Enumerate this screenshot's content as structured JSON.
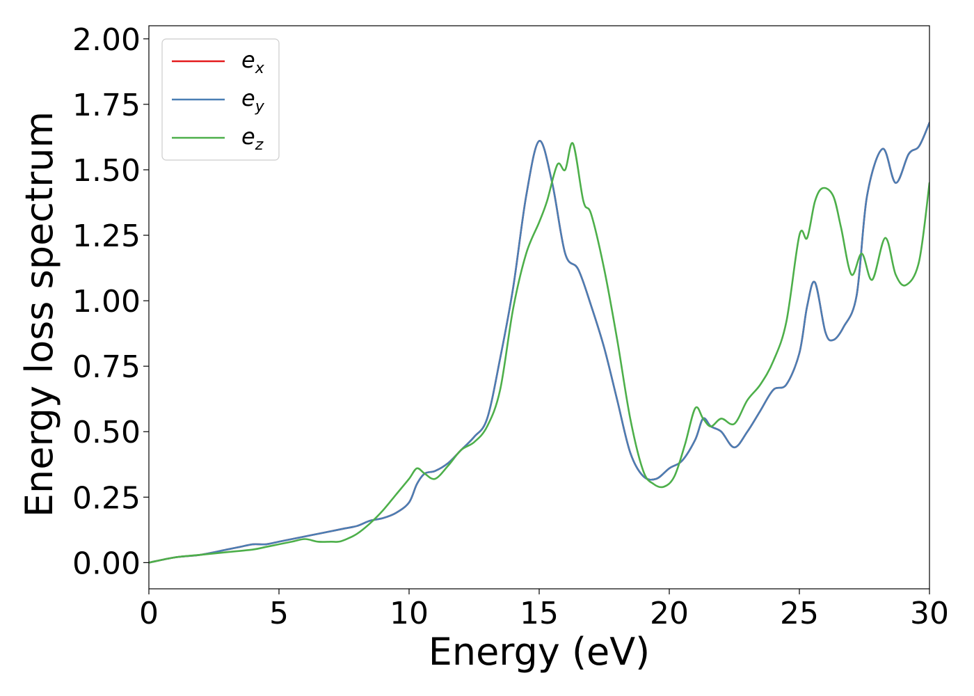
{
  "chart_data": {
    "type": "line",
    "xlabel": "Energy (eV)",
    "ylabel": "Energy loss spectrum",
    "xlim": [
      0,
      30
    ],
    "ylim": [
      -0.1,
      2.05
    ],
    "xticks": [
      0,
      5,
      10,
      15,
      20,
      25,
      30
    ],
    "xtick_labels": [
      "0",
      "5",
      "10",
      "15",
      "20",
      "25",
      "30"
    ],
    "yticks": [
      0.0,
      0.25,
      0.5,
      0.75,
      1.0,
      1.25,
      1.5,
      1.75,
      2.0
    ],
    "ytick_labels": [
      "0.00",
      "0.25",
      "0.50",
      "0.75",
      "1.00",
      "1.25",
      "1.50",
      "1.75",
      "2.00"
    ],
    "grid": false,
    "legend_position": "top-left",
    "series": [
      {
        "name": "e",
        "subscript": "x",
        "color": "#e41a1c",
        "x": [
          0,
          1,
          2,
          3,
          3.5,
          4,
          4.5,
          5,
          5.5,
          6,
          6.5,
          7,
          7.5,
          8,
          8.5,
          9,
          9.5,
          10,
          10.3,
          10.6,
          11,
          11.5,
          12,
          12.5,
          13,
          13.5,
          14,
          14.5,
          15,
          15.5,
          16,
          16.5,
          17,
          17.5,
          18,
          18.5,
          19,
          19.5,
          20,
          20.5,
          21,
          21.3,
          21.6,
          22,
          22.5,
          23,
          23.5,
          24,
          24.5,
          25,
          25.3,
          25.6,
          26,
          26.3,
          26.7,
          27.2,
          27.6,
          28.2,
          28.7,
          29.2,
          29.6,
          30
        ],
        "y": [
          0.0,
          0.02,
          0.03,
          0.05,
          0.06,
          0.07,
          0.07,
          0.08,
          0.09,
          0.1,
          0.11,
          0.12,
          0.13,
          0.14,
          0.16,
          0.17,
          0.19,
          0.23,
          0.3,
          0.34,
          0.35,
          0.38,
          0.43,
          0.48,
          0.55,
          0.78,
          1.05,
          1.4,
          1.61,
          1.45,
          1.18,
          1.12,
          0.98,
          0.82,
          0.62,
          0.42,
          0.33,
          0.32,
          0.36,
          0.39,
          0.47,
          0.55,
          0.52,
          0.5,
          0.44,
          0.5,
          0.58,
          0.66,
          0.68,
          0.8,
          0.98,
          1.07,
          0.88,
          0.85,
          0.9,
          1.02,
          1.4,
          1.58,
          1.45,
          1.56,
          1.59,
          1.68
        ]
      },
      {
        "name": "e",
        "subscript": "y",
        "color": "#4a7eb4",
        "x": [
          0,
          1,
          2,
          3,
          3.5,
          4,
          4.5,
          5,
          5.5,
          6,
          6.5,
          7,
          7.5,
          8,
          8.5,
          9,
          9.5,
          10,
          10.3,
          10.6,
          11,
          11.5,
          12,
          12.5,
          13,
          13.5,
          14,
          14.5,
          15,
          15.5,
          16,
          16.5,
          17,
          17.5,
          18,
          18.5,
          19,
          19.5,
          20,
          20.5,
          21,
          21.3,
          21.6,
          22,
          22.5,
          23,
          23.5,
          24,
          24.5,
          25,
          25.3,
          25.6,
          26,
          26.3,
          26.7,
          27.2,
          27.6,
          28.2,
          28.7,
          29.2,
          29.6,
          30
        ],
        "y": [
          0.0,
          0.02,
          0.03,
          0.05,
          0.06,
          0.07,
          0.07,
          0.08,
          0.09,
          0.1,
          0.11,
          0.12,
          0.13,
          0.14,
          0.16,
          0.17,
          0.19,
          0.23,
          0.3,
          0.34,
          0.35,
          0.38,
          0.43,
          0.48,
          0.55,
          0.78,
          1.05,
          1.4,
          1.61,
          1.45,
          1.18,
          1.12,
          0.98,
          0.82,
          0.62,
          0.42,
          0.33,
          0.32,
          0.36,
          0.39,
          0.47,
          0.55,
          0.52,
          0.5,
          0.44,
          0.5,
          0.58,
          0.66,
          0.68,
          0.8,
          0.98,
          1.07,
          0.88,
          0.85,
          0.9,
          1.02,
          1.4,
          1.58,
          1.45,
          1.56,
          1.59,
          1.68
        ]
      },
      {
        "name": "e",
        "subscript": "z",
        "color": "#4daf4a",
        "x": [
          0,
          1,
          2,
          3,
          4,
          4.5,
          5,
          5.5,
          6,
          6.5,
          7,
          7.3,
          7.6,
          8,
          8.5,
          9,
          9.5,
          10,
          10.3,
          10.6,
          11,
          11.5,
          12,
          12.5,
          13,
          13.5,
          14,
          14.5,
          15,
          15.3,
          15.7,
          16,
          16.3,
          16.7,
          17,
          17.5,
          18,
          18.5,
          19,
          19.4,
          19.8,
          20.2,
          20.6,
          21,
          21.3,
          21.6,
          22,
          22.5,
          23,
          23.5,
          24,
          24.5,
          25,
          25.3,
          25.6,
          25.9,
          26.3,
          26.6,
          27,
          27.4,
          27.8,
          28.3,
          28.7,
          29.1,
          29.6,
          30
        ],
        "y": [
          0.0,
          0.02,
          0.03,
          0.04,
          0.05,
          0.06,
          0.07,
          0.08,
          0.09,
          0.08,
          0.08,
          0.08,
          0.09,
          0.11,
          0.15,
          0.2,
          0.26,
          0.32,
          0.36,
          0.34,
          0.32,
          0.37,
          0.43,
          0.46,
          0.52,
          0.66,
          0.97,
          1.18,
          1.3,
          1.38,
          1.52,
          1.5,
          1.6,
          1.38,
          1.33,
          1.12,
          0.85,
          0.55,
          0.35,
          0.3,
          0.29,
          0.33,
          0.45,
          0.59,
          0.55,
          0.52,
          0.55,
          0.53,
          0.62,
          0.68,
          0.77,
          0.92,
          1.25,
          1.24,
          1.38,
          1.43,
          1.4,
          1.28,
          1.1,
          1.18,
          1.08,
          1.24,
          1.1,
          1.06,
          1.15,
          1.45
        ]
      }
    ]
  }
}
